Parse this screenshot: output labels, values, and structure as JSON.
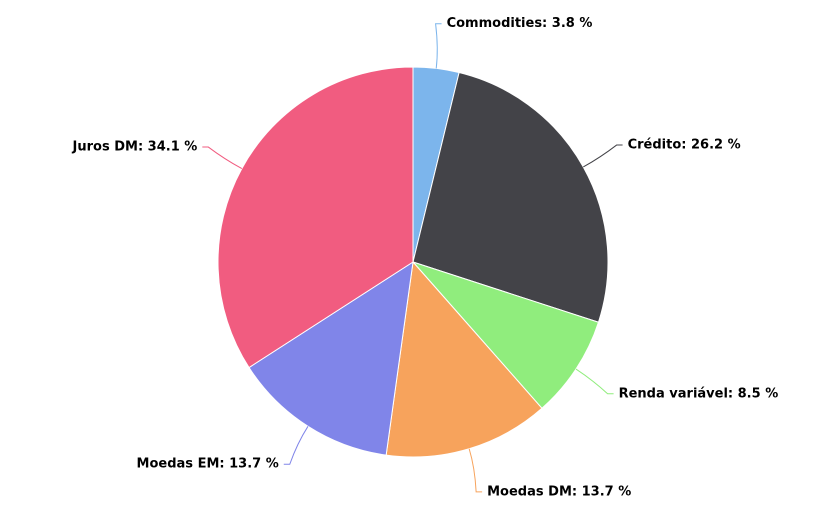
{
  "chart_data": {
    "type": "pie",
    "values": [
      3.8,
      26.2,
      8.5,
      13.7,
      13.7,
      34.1
    ],
    "value_labels": [
      "Commodities: 3.8 %",
      "Crédito: 26.2 %",
      "Renda variável: 8.5 %",
      "Moedas DM: 13.7 %",
      "Moedas EM: 13.7 %",
      "Juros DM: 34.1 %"
    ],
    "colors": [
      "#7cb5ec",
      "#434348",
      "#90ed7d",
      "#f7a35c",
      "#8085e9",
      "#f15c80"
    ]
  }
}
